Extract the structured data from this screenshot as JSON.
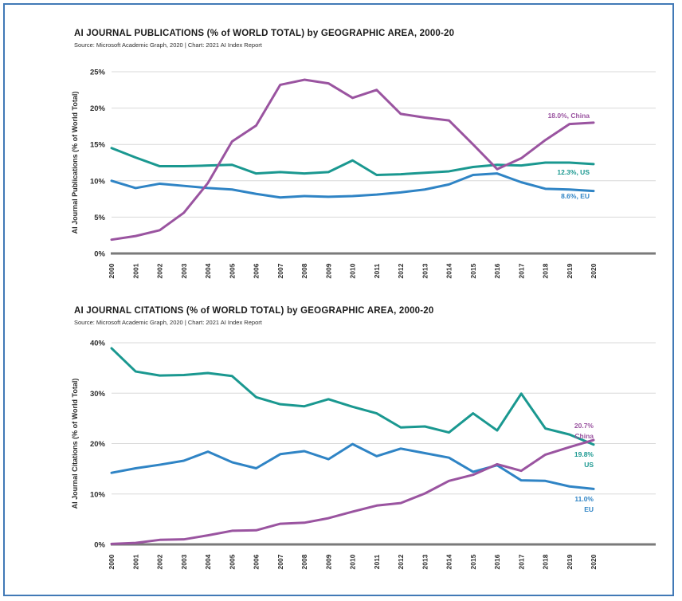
{
  "page": {
    "border_color": "#4179b6",
    "background": "#ffffff"
  },
  "colors": {
    "china": "#9a54a0",
    "us": "#1a9890",
    "eu": "#2f84c5",
    "gridline": "#d8d8d8",
    "axis": "#7a7a7a",
    "tick_text": "#2b2b2b"
  },
  "chart_data": [
    {
      "type": "line",
      "title": "AI JOURNAL PUBLICATIONS (% of WORLD TOTAL) by GEOGRAPHIC AREA, 2000-20",
      "source": "Source: Microsoft Academic Graph, 2020 | Chart: 2021 AI Index Report",
      "ylabel": "AI Journal Publications (% of World Total)",
      "xlabel": "",
      "ylim": [
        0,
        25
      ],
      "yticks": [
        "0%",
        "5%",
        "10%",
        "15%",
        "20%",
        "25%"
      ],
      "ytick_values": [
        0,
        5,
        10,
        15,
        20,
        25
      ],
      "grid": "horizontal",
      "legend_position": "right-annotations",
      "categories": [
        "2000",
        "2001",
        "2002",
        "2003",
        "2004",
        "2005",
        "2006",
        "2007",
        "2008",
        "2009",
        "2010",
        "2011",
        "2012",
        "2013",
        "2014",
        "2015",
        "2016",
        "2017",
        "2018",
        "2019",
        "2020"
      ],
      "series": [
        {
          "name": "EU",
          "color_key": "eu",
          "values": [
            10.0,
            9.0,
            9.6,
            9.3,
            9.0,
            8.8,
            8.2,
            7.7,
            7.9,
            7.8,
            7.9,
            8.1,
            8.4,
            8.8,
            9.5,
            10.8,
            11.0,
            9.8,
            8.9,
            8.8,
            8.6
          ]
        },
        {
          "name": "US",
          "color_key": "us",
          "values": [
            14.5,
            13.2,
            12.0,
            12.0,
            12.1,
            12.2,
            11.0,
            11.2,
            11.0,
            11.2,
            12.8,
            10.8,
            10.9,
            11.1,
            11.3,
            11.9,
            12.2,
            12.1,
            12.5,
            12.5,
            12.3
          ]
        },
        {
          "name": "China",
          "color_key": "china",
          "values": [
            1.9,
            2.4,
            3.2,
            5.6,
            9.7,
            15.4,
            17.6,
            23.2,
            23.9,
            23.4,
            21.4,
            22.5,
            19.2,
            18.7,
            18.3,
            15.0,
            11.6,
            13.1,
            15.6,
            17.8,
            18.0
          ]
        }
      ],
      "annotations": [
        {
          "series": "china",
          "color_key": "china",
          "lines": [
            "18.0%, China"
          ]
        },
        {
          "series": "us",
          "color_key": "us",
          "lines": [
            "12.3%, US"
          ]
        },
        {
          "series": "eu",
          "color_key": "eu",
          "lines": [
            "8.6%, EU"
          ]
        }
      ]
    },
    {
      "type": "line",
      "title": "AI JOURNAL CITATIONS (% of WORLD TOTAL) by GEOGRAPHIC AREA, 2000-20",
      "source": "Source: Microsoft Academic Graph, 2020 | Chart: 2021 AI Index Report",
      "ylabel": "AI Journal Citations (% of World Total)",
      "xlabel": "",
      "ylim": [
        0,
        40
      ],
      "yticks": [
        "0%",
        "10%",
        "20%",
        "30%",
        "40%"
      ],
      "ytick_values": [
        0,
        10,
        20,
        30,
        40
      ],
      "grid": "horizontal",
      "legend_position": "right-annotations",
      "categories": [
        "2000",
        "2001",
        "2002",
        "2003",
        "2004",
        "2005",
        "2006",
        "2007",
        "2008",
        "2009",
        "2010",
        "2011",
        "2012",
        "2013",
        "2014",
        "2015",
        "2016",
        "2017",
        "2018",
        "2019",
        "2020"
      ],
      "series": [
        {
          "name": "EU",
          "color_key": "eu",
          "values": [
            14.2,
            15.1,
            15.8,
            16.6,
            18.4,
            16.3,
            15.1,
            17.9,
            18.5,
            16.9,
            19.9,
            17.5,
            19.0,
            18.1,
            17.2,
            14.4,
            15.7,
            12.7,
            12.6,
            11.5,
            11.0
          ]
        },
        {
          "name": "US",
          "color_key": "us",
          "values": [
            38.9,
            34.3,
            33.5,
            33.6,
            34.0,
            33.4,
            29.2,
            27.8,
            27.4,
            28.8,
            27.3,
            26.0,
            23.2,
            23.4,
            22.2,
            26.0,
            22.6,
            29.9,
            23.0,
            21.8,
            19.8
          ]
        },
        {
          "name": "China",
          "color_key": "china",
          "values": [
            0.1,
            0.3,
            0.9,
            1.0,
            1.8,
            2.7,
            2.8,
            4.1,
            4.3,
            5.2,
            6.5,
            7.7,
            8.2,
            10.1,
            12.6,
            13.8,
            15.9,
            14.6,
            17.8,
            19.3,
            20.7
          ]
        }
      ],
      "annotations": [
        {
          "series": "china",
          "color_key": "china",
          "lines": [
            "20.7%",
            "China"
          ]
        },
        {
          "series": "us",
          "color_key": "us",
          "lines": [
            "19.8%",
            "US"
          ]
        },
        {
          "series": "eu",
          "color_key": "eu",
          "lines": [
            "11.0%",
            "EU"
          ]
        }
      ]
    }
  ]
}
